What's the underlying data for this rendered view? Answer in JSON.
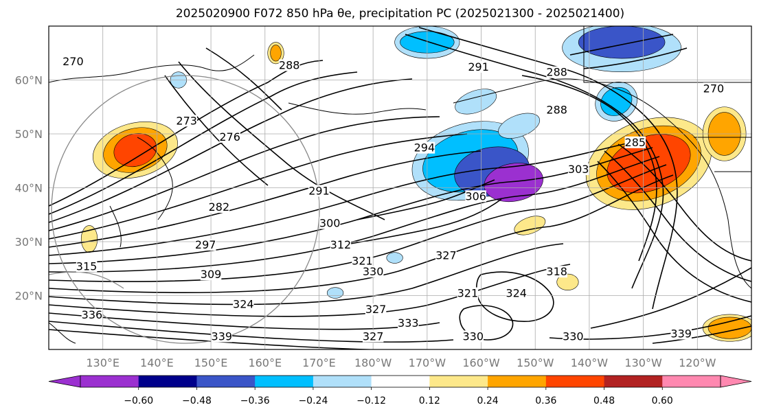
{
  "title": "2025020900 F072 850 hPa θe, precipitation PC (2025021300 - 2025021400)",
  "chart_data": {
    "type": "contour",
    "title": "2025020900 F072 850 hPa θe, precipitation PC (2025021300 - 2025021400)",
    "x_ticks": [
      "130°E",
      "140°E",
      "150°E",
      "160°E",
      "170°E",
      "180°W",
      "170°W",
      "160°W",
      "150°W",
      "140°W",
      "130°W",
      "120°W"
    ],
    "y_ticks": [
      "20°N",
      "30°N",
      "40°N",
      "50°N",
      "60°N"
    ],
    "lon_range": [
      120,
      250
    ],
    "lat_range": [
      10,
      70
    ],
    "contour_labels": [
      {
        "text": "270",
        "lon": 124.5,
        "lat": 63.5
      },
      {
        "text": "288",
        "lon": 164.5,
        "lat": 62.8
      },
      {
        "text": "291",
        "lon": 199.5,
        "lat": 62.5
      },
      {
        "text": "288",
        "lon": 214,
        "lat": 61.5
      },
      {
        "text": "270",
        "lon": 243,
        "lat": 58.5
      },
      {
        "text": "288",
        "lon": 214,
        "lat": 54.5
      },
      {
        "text": "273",
        "lon": 145.5,
        "lat": 52.5
      },
      {
        "text": "276",
        "lon": 153.5,
        "lat": 49.5
      },
      {
        "text": "294",
        "lon": 189.5,
        "lat": 47.5
      },
      {
        "text": "285",
        "lon": 228.5,
        "lat": 48.5
      },
      {
        "text": "303",
        "lon": 218,
        "lat": 43.5
      },
      {
        "text": "282",
        "lon": 151.5,
        "lat": 36.5
      },
      {
        "text": "291",
        "lon": 170,
        "lat": 39.5
      },
      {
        "text": "306",
        "lon": 199,
        "lat": 38.5
      },
      {
        "text": "300",
        "lon": 172,
        "lat": 33.5
      },
      {
        "text": "297",
        "lon": 149,
        "lat": 29.5
      },
      {
        "text": "312",
        "lon": 174,
        "lat": 29.5
      },
      {
        "text": "321",
        "lon": 178,
        "lat": 26.5
      },
      {
        "text": "327",
        "lon": 193.5,
        "lat": 27.5
      },
      {
        "text": "315",
        "lon": 127,
        "lat": 25.5
      },
      {
        "text": "330",
        "lon": 180,
        "lat": 24.5
      },
      {
        "text": "309",
        "lon": 150,
        "lat": 24
      },
      {
        "text": "318",
        "lon": 214,
        "lat": 24.5
      },
      {
        "text": "324",
        "lon": 156,
        "lat": 18.5
      },
      {
        "text": "321",
        "lon": 197.5,
        "lat": 20.5
      },
      {
        "text": "324",
        "lon": 206.5,
        "lat": 20.5
      },
      {
        "text": "327",
        "lon": 180.5,
        "lat": 17.5
      },
      {
        "text": "333",
        "lon": 186.5,
        "lat": 15
      },
      {
        "text": "336",
        "lon": 128,
        "lat": 16.5
      },
      {
        "text": "330",
        "lon": 198.5,
        "lat": 12.5
      },
      {
        "text": "339",
        "lon": 152,
        "lat": 12.5
      },
      {
        "text": "327",
        "lon": 180,
        "lat": 12.5
      },
      {
        "text": "330",
        "lon": 217,
        "lat": 12.5
      },
      {
        "text": "339",
        "lon": 237,
        "lat": 13
      }
    ],
    "precip_pc_regions": [
      {
        "lon": 206,
        "lat": 41,
        "rx": 5.5,
        "ry": 3.5,
        "rot": -10,
        "level": -0.6
      },
      {
        "lon": 202,
        "lat": 43,
        "rx": 7,
        "ry": 4.5,
        "rot": -10,
        "level": -0.48
      },
      {
        "lon": 198,
        "lat": 45,
        "rx": 9,
        "ry": 5.5,
        "rot": -15,
        "level": -0.36
      },
      {
        "lon": 198,
        "lat": 45,
        "rx": 11,
        "ry": 7,
        "rot": -15,
        "level": -0.24
      },
      {
        "lon": 231,
        "lat": 44.5,
        "rx": 8,
        "ry": 5,
        "rot": -20,
        "level": 0.48
      },
      {
        "lon": 231,
        "lat": 44.5,
        "rx": 10,
        "ry": 6.5,
        "rot": -20,
        "level": 0.36
      },
      {
        "lon": 231,
        "lat": 44.5,
        "rx": 12,
        "ry": 8,
        "rot": -20,
        "level": 0.24
      },
      {
        "lon": 136,
        "lat": 47,
        "rx": 4,
        "ry": 3,
        "rot": -15,
        "level": 0.48
      },
      {
        "lon": 136,
        "lat": 47,
        "rx": 6,
        "ry": 4,
        "rot": -15,
        "level": 0.36
      },
      {
        "lon": 136,
        "lat": 47,
        "rx": 8,
        "ry": 5,
        "rot": -15,
        "level": 0.24
      },
      {
        "lon": 246,
        "lat": 14,
        "rx": 4,
        "ry": 2,
        "rot": 0,
        "level": 0.36
      },
      {
        "lon": 246,
        "lat": 14,
        "rx": 5,
        "ry": 2.5,
        "rot": 0,
        "level": 0.24
      },
      {
        "lon": 245,
        "lat": 50,
        "rx": 3,
        "ry": 4,
        "rot": 0,
        "level": 0.36
      },
      {
        "lon": 245,
        "lat": 50,
        "rx": 4,
        "ry": 5,
        "rot": 0,
        "level": 0.24
      },
      {
        "lon": 190,
        "lat": 67,
        "rx": 5,
        "ry": 2,
        "rot": 0,
        "level": -0.36
      },
      {
        "lon": 190,
        "lat": 67,
        "rx": 6,
        "ry": 3,
        "rot": 0,
        "level": -0.24
      },
      {
        "lon": 226,
        "lat": 67,
        "rx": 8,
        "ry": 3,
        "rot": 0,
        "level": -0.48
      },
      {
        "lon": 226,
        "lat": 66,
        "rx": 11,
        "ry": 4.5,
        "rot": 0,
        "level": -0.24
      },
      {
        "lon": 199,
        "lat": 56,
        "rx": 4,
        "ry": 2,
        "rot": -20,
        "level": -0.24
      },
      {
        "lon": 207,
        "lat": 51.5,
        "rx": 4,
        "ry": 2,
        "rot": -20,
        "level": -0.24
      },
      {
        "lon": 225,
        "lat": 56,
        "rx": 3,
        "ry": 2.5,
        "rot": -30,
        "level": -0.36
      },
      {
        "lon": 225,
        "lat": 56,
        "rx": 4,
        "ry": 3.5,
        "rot": -30,
        "level": -0.24
      },
      {
        "lon": 209,
        "lat": 33,
        "rx": 3,
        "ry": 1.5,
        "rot": -20,
        "level": 0.24
      },
      {
        "lon": 216,
        "lat": 22.5,
        "rx": 2,
        "ry": 1.5,
        "rot": 0,
        "level": 0.24
      },
      {
        "lon": 127.5,
        "lat": 30.5,
        "rx": 1.5,
        "ry": 2.5,
        "rot": 0,
        "level": 0.24
      },
      {
        "lon": 162,
        "lat": 65,
        "rx": 1,
        "ry": 1.5,
        "rot": 0,
        "level": 0.36
      },
      {
        "lon": 162,
        "lat": 65,
        "rx": 1.5,
        "ry": 2,
        "rot": 0,
        "level": 0.24
      },
      {
        "lon": 144,
        "lat": 60,
        "rx": 1.5,
        "ry": 1.5,
        "rot": 0,
        "level": -0.24
      },
      {
        "lon": 173,
        "lat": 20.5,
        "rx": 1.5,
        "ry": 1,
        "rot": 0,
        "level": -0.24
      },
      {
        "lon": 184,
        "lat": 27,
        "rx": 1.5,
        "ry": 1,
        "rot": 0,
        "level": -0.24
      }
    ],
    "colorbar": {
      "ticks": [
        "−0.60",
        "−0.48",
        "−0.36",
        "−0.24",
        "−0.12",
        "0.12",
        "0.24",
        "0.36",
        "0.48",
        "0.60"
      ],
      "colors": [
        "#9b30d0",
        "#00008b",
        "#3a55c8",
        "#00bfff",
        "#b0e0fa",
        "#ffffff",
        "#fde88a",
        "#ffa500",
        "#ff4500",
        "#b22222",
        "#ff88b0"
      ]
    }
  }
}
